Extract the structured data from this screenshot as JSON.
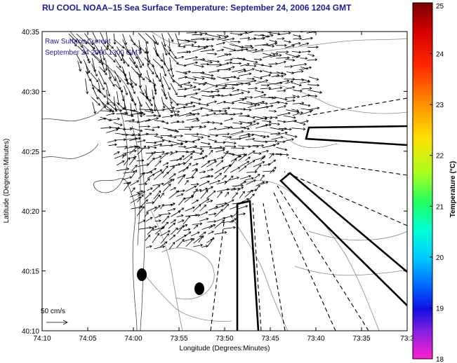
{
  "title": "RU COOL  NOAA–15  Sea Surface Temperature:  September 24, 2006 1204 GMT",
  "legend": {
    "line1": "Raw Surface Current",
    "line2": "September 24 2006 1300 GMT"
  },
  "scale_label": "50 cm/s",
  "axes": {
    "xlabel": "Longitude (Degrees:Minutes)",
    "ylabel": "Latitude (Degrees:Minutes)",
    "xticks": [
      "74:10",
      "74:05",
      "74:00",
      "73:55",
      "73:50",
      "73:45",
      "73:40",
      "73:35",
      "73:3"
    ],
    "yticks": [
      "40:35",
      "40:30",
      "40:25",
      "40:20",
      "40:15",
      "40:10"
    ]
  },
  "colorbar": {
    "label": "Temperature (°C)",
    "ticks": [
      "25",
      "24",
      "23",
      "22",
      "21",
      "20",
      "19",
      "18"
    ],
    "min": 18,
    "max": 25
  },
  "colors": {
    "title": "#1a1aa8",
    "contours": "#888888",
    "arrows": "#000000"
  }
}
